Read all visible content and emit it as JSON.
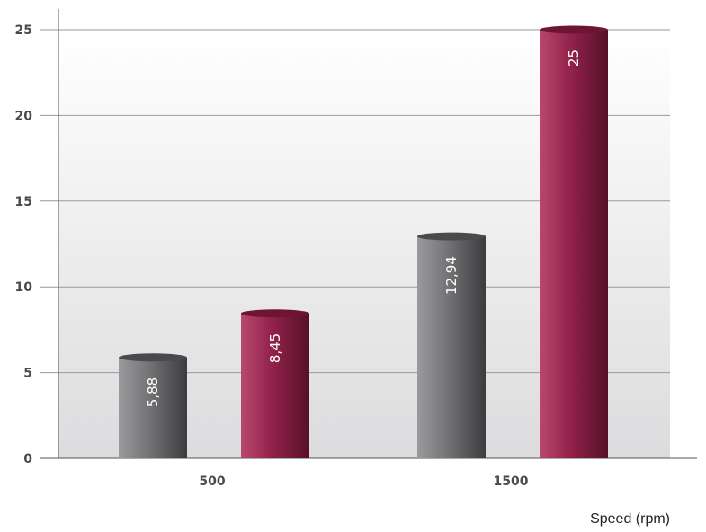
{
  "chart_data": {
    "type": "bar",
    "categories": [
      "500",
      "1500"
    ],
    "series": [
      {
        "values": [
          5.88,
          12.94
        ],
        "labels": [
          "5,88",
          "12,94"
        ],
        "color": "#6a6a6c"
      },
      {
        "values": [
          8.45,
          25
        ],
        "labels": [
          "8,45",
          "25"
        ],
        "color": "#8e2047"
      }
    ],
    "y_ticks": [
      "0",
      "5",
      "10",
      "15",
      "20",
      "25"
    ],
    "xlabel": "Speed (rpm)",
    "ylabel": "",
    "title": "",
    "ylim": [
      0,
      25
    ],
    "grid": true,
    "bar_style": "cylinder",
    "data_labels": "inside, rotated vertical"
  }
}
